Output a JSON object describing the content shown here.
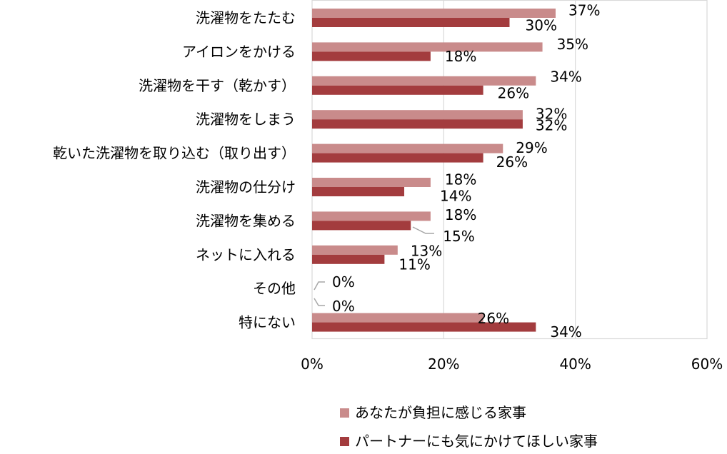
{
  "chart_data": {
    "type": "bar",
    "orientation": "horizontal",
    "categories": [
      "洗濯物をたたむ",
      "アイロンをかける",
      "洗濯物を干す（乾かす）",
      "洗濯物をしまう",
      "乾いた洗濯物を取り込む（取り出す）",
      "洗濯物の仕分け",
      "洗濯物を集める",
      "ネットに入れる",
      "その他",
      "特にない"
    ],
    "series": [
      {
        "name": "あなたが負担に感じる家事",
        "color": "#c98b8b",
        "values": [
          37,
          35,
          34,
          32,
          29,
          18,
          18,
          13,
          0,
          26
        ],
        "labels": [
          "37%",
          "35%",
          "34%",
          "32%",
          "29%",
          "18%",
          "18%",
          "13%",
          "0%",
          "26%"
        ]
      },
      {
        "name": "パートナーにも気にかけてほしい家事",
        "color": "#a33c3e",
        "values": [
          30,
          18,
          26,
          32,
          26,
          14,
          15,
          11,
          0,
          34
        ],
        "labels": [
          "30%",
          "18%",
          "26%",
          "32%",
          "26%",
          "14%",
          "15%",
          "11%",
          "0%",
          "34%"
        ]
      }
    ],
    "xlim": [
      0,
      60
    ],
    "x_ticks": [
      0,
      20,
      40,
      60
    ],
    "x_tick_labels": [
      "0%",
      "20%",
      "40%",
      "60%"
    ],
    "grid": true,
    "legend_position": "bottom",
    "title": "",
    "xlabel": "",
    "ylabel": ""
  }
}
